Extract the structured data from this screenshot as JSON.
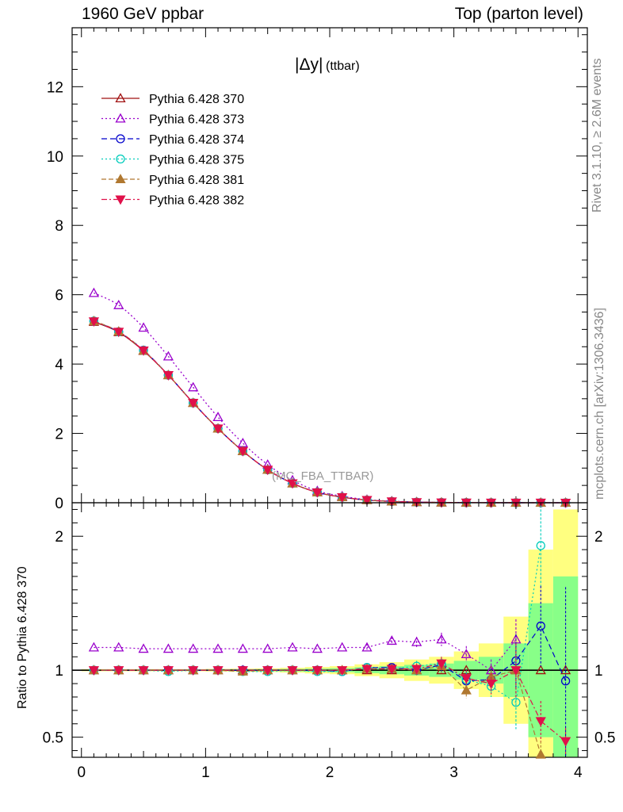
{
  "header": {
    "left": "1960 GeV ppbar",
    "right": "Top (parton level)"
  },
  "side_labels": {
    "rivet": "Rivet 3.1.10, ≥ 2.6M events",
    "mcplots": "mcplots.cern.ch [arXiv:1306.3436]"
  },
  "main_panel": {
    "title": "|Δy|",
    "title_sub": "(ttbar)",
    "watermark": "(MC_FBA_TTBAR)"
  },
  "ratio_panel": {
    "ylabel": "Ratio to Pythia 6.428 370"
  },
  "chart_data": [
    {
      "type": "line",
      "panel": "main",
      "x": [
        0.1,
        0.3,
        0.5,
        0.7,
        0.9,
        1.1,
        1.3,
        1.5,
        1.7,
        1.9,
        2.1,
        2.3,
        2.5,
        2.7,
        2.9,
        3.1,
        3.3,
        3.5,
        3.7,
        3.9
      ],
      "xlim": [
        -0.075,
        4.075
      ],
      "ylim": [
        0,
        13.7
      ],
      "yticks": [
        0,
        2,
        4,
        6,
        8,
        10,
        12
      ],
      "xticks": [
        0,
        1,
        2,
        3,
        4
      ],
      "legend_position": "top-left",
      "series": [
        {
          "name": "Pythia 6.428 370",
          "color": "#a01010",
          "marker": "triangle-open",
          "dash": "",
          "values": [
            5.22,
            4.92,
            4.38,
            3.68,
            2.88,
            2.14,
            1.49,
            0.95,
            0.56,
            0.3,
            0.16,
            0.077,
            0.038,
            0.017,
            0.008,
            0.004,
            0.002,
            0.001,
            0.0005,
            0.0002
          ]
        },
        {
          "name": "Pythia 6.428 373",
          "color": "#9900cc",
          "marker": "triangle-open",
          "dash": "2,3",
          "values": [
            6.05,
            5.7,
            5.05,
            4.22,
            3.33,
            2.47,
            1.72,
            1.1,
            0.65,
            0.34,
            0.19,
            0.09,
            0.047,
            0.021,
            0.01,
            0.005,
            0.002,
            0.001,
            0.0005,
            0.0002
          ]
        },
        {
          "name": "Pythia 6.428 374",
          "color": "#0000cc",
          "marker": "circle-open",
          "dash": "7,4",
          "values": [
            5.24,
            4.93,
            4.4,
            3.68,
            2.88,
            2.14,
            1.49,
            0.95,
            0.56,
            0.3,
            0.16,
            0.078,
            0.038,
            0.017,
            0.008,
            0.004,
            0.002,
            0.001,
            0.0007,
            0.0002
          ]
        },
        {
          "name": "Pythia 6.428 375",
          "color": "#00ccbb",
          "marker": "circle-open",
          "dash": "2,3",
          "values": [
            5.24,
            4.93,
            4.39,
            3.68,
            2.88,
            2.14,
            1.49,
            0.95,
            0.56,
            0.3,
            0.16,
            0.078,
            0.038,
            0.018,
            0.008,
            0.004,
            0.002,
            0.001,
            0.001,
            0.0002
          ]
        },
        {
          "name": "Pythia 6.428 381",
          "color": "#b07830",
          "marker": "triangle-filled",
          "dash": "6,3",
          "values": [
            5.24,
            4.94,
            4.39,
            3.68,
            2.88,
            2.14,
            1.49,
            0.95,
            0.56,
            0.3,
            0.16,
            0.078,
            0.038,
            0.017,
            0.008,
            0.003,
            0.002,
            0.001,
            0.0002,
            0.0001
          ]
        },
        {
          "name": "Pythia 6.428 382",
          "color": "#e0104a",
          "marker": "triangle-down-filled",
          "dash": "7,3,2,3",
          "values": [
            5.23,
            4.93,
            4.39,
            3.68,
            2.88,
            2.14,
            1.49,
            0.95,
            0.56,
            0.3,
            0.16,
            0.078,
            0.038,
            0.017,
            0.008,
            0.004,
            0.002,
            0.001,
            0.0003,
            0.0001
          ]
        }
      ]
    },
    {
      "type": "line",
      "panel": "ratio",
      "ylabel": "Ratio to Pythia 6.428 370",
      "x": [
        0.1,
        0.3,
        0.5,
        0.7,
        0.9,
        1.1,
        1.3,
        1.5,
        1.7,
        1.9,
        2.1,
        2.3,
        2.5,
        2.7,
        2.9,
        3.1,
        3.3,
        3.5,
        3.7,
        3.9
      ],
      "xlim": [
        -0.075,
        4.075
      ],
      "ylim": [
        0.35,
        2.25
      ],
      "yticks": [
        0.5,
        1,
        2
      ],
      "xticks": [
        0,
        1,
        2,
        3,
        4
      ],
      "bands": {
        "green_halfwidth": [
          0.004,
          0.004,
          0.004,
          0.004,
          0.004,
          0.005,
          0.006,
          0.007,
          0.009,
          0.012,
          0.015,
          0.022,
          0.03,
          0.04,
          0.05,
          0.07,
          0.1,
          0.2,
          0.5,
          0.7
        ],
        "yellow_halfwidth": [
          0.008,
          0.008,
          0.008,
          0.008,
          0.008,
          0.01,
          0.012,
          0.014,
          0.018,
          0.024,
          0.03,
          0.044,
          0.06,
          0.08,
          0.1,
          0.14,
          0.2,
          0.4,
          0.9,
          1.2
        ]
      },
      "series": [
        {
          "name": "Pythia 6.428 373",
          "values": [
            1.17,
            1.17,
            1.16,
            1.16,
            1.16,
            1.16,
            1.16,
            1.16,
            1.17,
            1.16,
            1.17,
            1.17,
            1.22,
            1.21,
            1.23,
            1.12,
            1.0,
            1.23,
            null,
            null
          ],
          "err": [
            0.01,
            0.01,
            0.01,
            0.01,
            0.01,
            0.01,
            0.01,
            0.01,
            0.01,
            0.01,
            0.02,
            0.03,
            0.03,
            0.04,
            0.05,
            0.06,
            0.08,
            0.15,
            0,
            0
          ]
        },
        {
          "name": "Pythia 6.428 374",
          "values": [
            1.0,
            1.0,
            1.0,
            1.0,
            1.0,
            1.0,
            1.0,
            1.0,
            1.0,
            1.0,
            0.99,
            1.02,
            1.02,
            1.0,
            1.04,
            0.92,
            0.93,
            1.07,
            1.33,
            0.92
          ],
          "err": [
            0.005,
            0.005,
            0.005,
            0.005,
            0.005,
            0.005,
            0.005,
            0.005,
            0.01,
            0.01,
            0.01,
            0.02,
            0.03,
            0.04,
            0.05,
            0.06,
            0.08,
            0.2,
            0.3,
            0.7
          ]
        },
        {
          "name": "Pythia 6.428 375",
          "values": [
            1.0,
            1.0,
            1.0,
            0.99,
            1.0,
            1.0,
            0.99,
            0.99,
            1.0,
            0.99,
            0.99,
            1.02,
            1.01,
            1.03,
            1.05,
            0.93,
            0.88,
            0.76,
            1.93,
            null
          ],
          "err": [
            0.005,
            0.005,
            0.005,
            0.005,
            0.005,
            0.005,
            0.005,
            0.005,
            0.01,
            0.01,
            0.01,
            0.02,
            0.03,
            0.04,
            0.05,
            0.06,
            0.08,
            0.2,
            0.3,
            0
          ]
        },
        {
          "name": "Pythia 6.428 381",
          "values": [
            1.0,
            1.0,
            1.0,
            1.0,
            1.0,
            1.0,
            0.99,
            1.0,
            1.0,
            1.0,
            1.0,
            1.01,
            1.01,
            1.0,
            1.03,
            0.85,
            0.95,
            1.0,
            0.37,
            null
          ],
          "err": [
            0.005,
            0.005,
            0.005,
            0.005,
            0.005,
            0.005,
            0.005,
            0.005,
            0.01,
            0.01,
            0.01,
            0.02,
            0.03,
            0.04,
            0.05,
            0.06,
            0.08,
            0.2,
            0.1,
            0
          ]
        },
        {
          "name": "Pythia 6.428 382",
          "values": [
            1.0,
            1.0,
            1.0,
            1.0,
            1.0,
            1.0,
            1.0,
            1.0,
            1.0,
            1.0,
            1.0,
            1.01,
            1.01,
            1.01,
            1.05,
            0.94,
            0.9,
            1.0,
            0.62,
            0.47
          ],
          "err": [
            0.005,
            0.005,
            0.005,
            0.005,
            0.005,
            0.005,
            0.005,
            0.005,
            0.01,
            0.01,
            0.01,
            0.02,
            0.03,
            0.04,
            0.05,
            0.06,
            0.08,
            0.2,
            0.15,
            0.1
          ]
        }
      ]
    }
  ]
}
